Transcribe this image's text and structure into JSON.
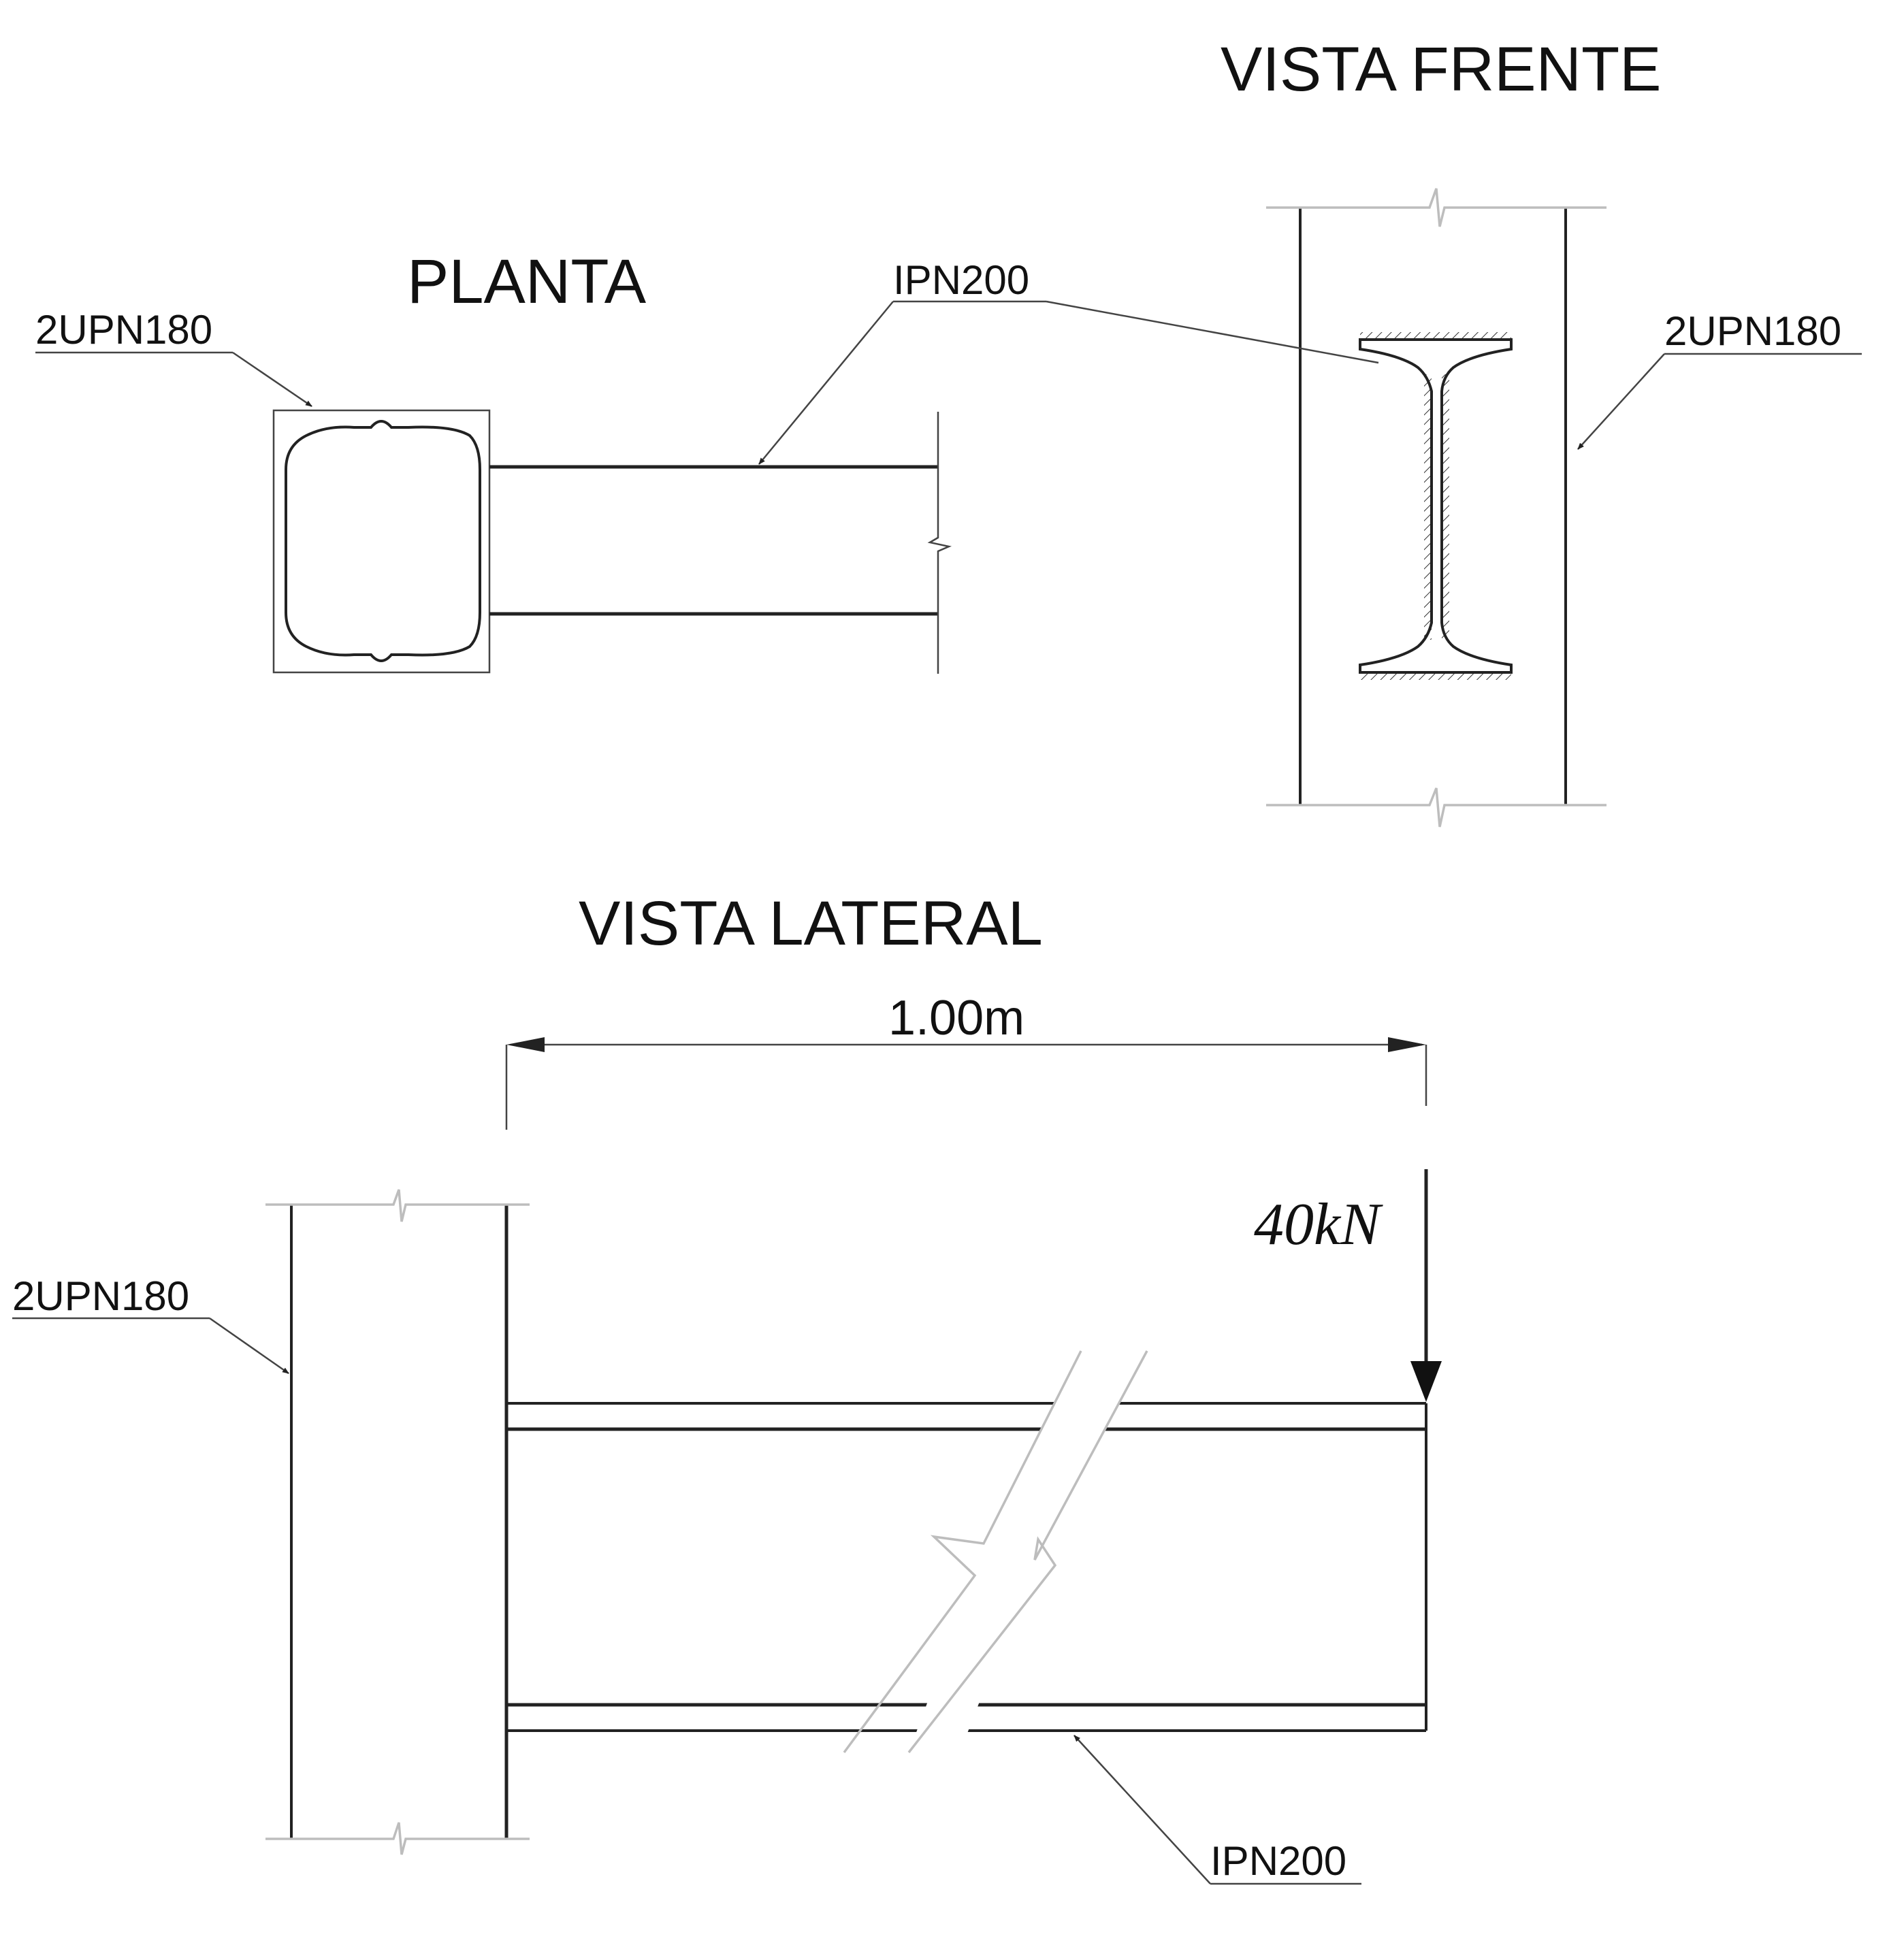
{
  "views": {
    "planta": {
      "title": "PLANTA",
      "column_label": "2UPN180",
      "beam_label": "IPN200"
    },
    "vista_frente": {
      "title": "VISTA FRENTE",
      "column_label": "2UPN180"
    },
    "vista_lateral": {
      "title": "VISTA LATERAL",
      "column_label": "2UPN180",
      "beam_label": "IPN200",
      "dimension": "1.00m",
      "load": "40kN"
    }
  }
}
